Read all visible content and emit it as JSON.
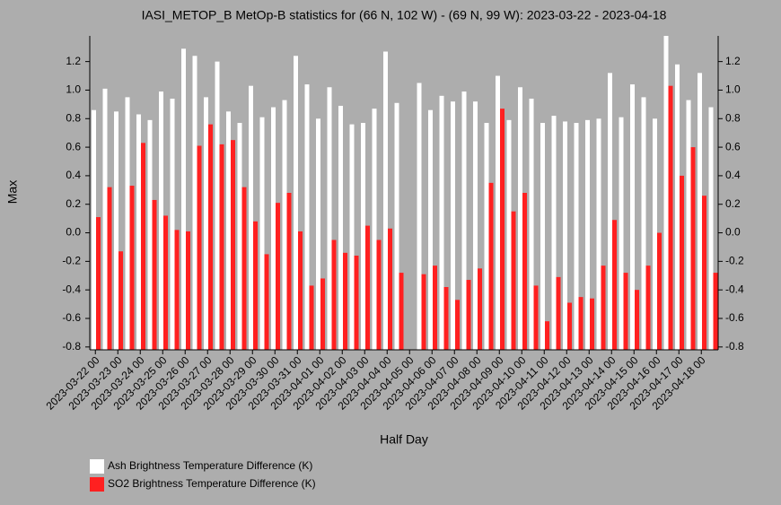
{
  "chart_data": {
    "type": "bar",
    "title": "IASI_METOP_B MetOp-B statistics for (66 N, 102 W) - (69 N, 99 W): 2023-03-22 - 2023-04-18",
    "x_label": "Half Day",
    "y_label": "Max",
    "categories": [
      "2023-03-22 00",
      null,
      "2023-03-23 00",
      null,
      "2023-03-24 00",
      null,
      "2023-03-25 00",
      null,
      "2023-03-26 00",
      null,
      "2023-03-27 00",
      null,
      "2023-03-28 00",
      null,
      "2023-03-29 00",
      null,
      "2023-03-30 00",
      null,
      "2023-03-31 00",
      null,
      "2023-04-01 00",
      null,
      "2023-04-02 00",
      null,
      "2023-04-03 00",
      null,
      "2023-04-04 00",
      null,
      "2023-04-05 00",
      null,
      "2023-04-06 00",
      null,
      "2023-04-07 00",
      null,
      "2023-04-08 00",
      null,
      "2023-04-09 00",
      null,
      "2023-04-10 00",
      null,
      "2023-04-11 00",
      null,
      "2023-04-12 00",
      null,
      "2023-04-13 00",
      null,
      "2023-04-14 00",
      null,
      "2023-04-15 00",
      null,
      "2023-04-16 00",
      null,
      "2023-04-17 00",
      null,
      "2023-04-18 00",
      null
    ],
    "series": [
      {
        "name": "Ash Brightness Temperature Difference (K)",
        "color": "#ffffff",
        "values": [
          0.86,
          1.01,
          0.85,
          0.95,
          0.83,
          0.79,
          0.99,
          0.94,
          1.29,
          1.24,
          0.95,
          1.2,
          0.85,
          0.77,
          1.03,
          0.81,
          0.88,
          0.93,
          1.24,
          1.04,
          0.8,
          1.02,
          0.89,
          0.76,
          0.77,
          0.87,
          1.27,
          0.91,
          null,
          1.05,
          0.86,
          0.96,
          0.92,
          0.99,
          0.92,
          0.77,
          1.1,
          0.79,
          1.02,
          0.94,
          0.77,
          0.82,
          0.78,
          0.77,
          0.79,
          0.8,
          1.12,
          0.81,
          1.04,
          0.95,
          0.8,
          1.38,
          1.18,
          0.93,
          1.12,
          0.88
        ]
      },
      {
        "name": "SO2 Brightness Temperature Difference (K)",
        "color": "#ff2020",
        "values": [
          0.11,
          0.32,
          -0.13,
          0.33,
          0.63,
          0.23,
          0.12,
          0.02,
          0.01,
          0.61,
          0.76,
          0.62,
          0.65,
          0.32,
          0.08,
          -0.15,
          0.21,
          0.28,
          0.01,
          -0.37,
          -0.32,
          -0.05,
          -0.14,
          -0.16,
          0.05,
          -0.05,
          0.03,
          -0.28,
          null,
          -0.29,
          -0.23,
          -0.38,
          -0.47,
          -0.33,
          -0.25,
          0.35,
          0.87,
          0.15,
          0.28,
          -0.37,
          -0.62,
          -0.31,
          -0.49,
          -0.45,
          -0.46,
          -0.23,
          0.09,
          -0.28,
          -0.4,
          -0.23,
          0.0,
          1.03,
          0.4,
          0.6,
          0.26,
          -0.28
        ]
      }
    ],
    "ylim": [
      -0.82,
      1.38
    ],
    "yticks": [
      -0.8,
      -0.6,
      -0.4,
      -0.2,
      {
        "value": 0,
        "label": "0.0"
      },
      0.2,
      0.4,
      0.6,
      0.8,
      {
        "value": 1,
        "label": "1.0"
      },
      1.2
    ]
  }
}
